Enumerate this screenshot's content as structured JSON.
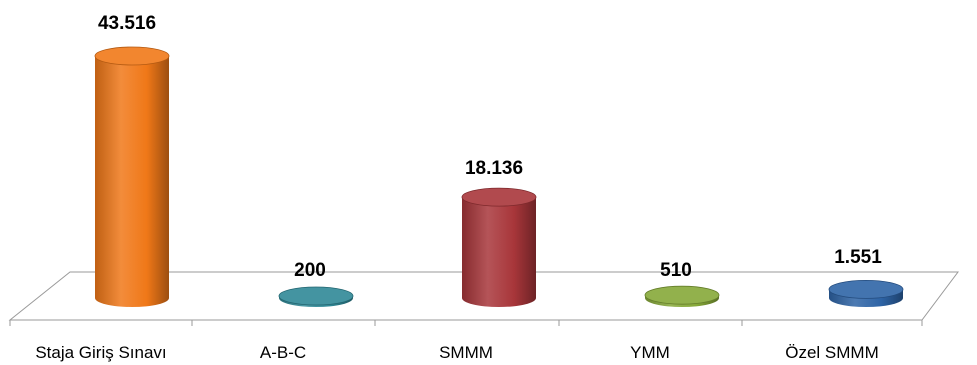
{
  "chart_data": {
    "type": "bar",
    "style": "3d-cylinder",
    "categories": [
      "Staja Giriş Sınavı",
      "A-B-C",
      "SMMM",
      "YMM",
      "Özel SMMM"
    ],
    "values": [
      43516,
      200,
      18136,
      510,
      1551
    ],
    "value_labels": [
      "43.516",
      "200",
      "18.136",
      "510",
      "1.551"
    ],
    "colors": [
      "#f07818",
      "#2f8896",
      "#a8363a",
      "#86a838",
      "#2e64a6"
    ],
    "ylim": [
      0,
      43516
    ],
    "grid": false,
    "legend": "none"
  }
}
